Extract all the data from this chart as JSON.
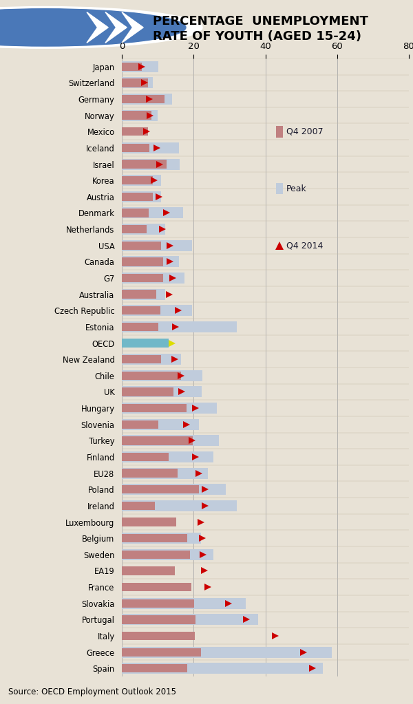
{
  "title_line1": "PERCENTAGE  UNEMPLOYMENT",
  "title_line2": "RATE OF YOUTH (AGED 15-24)",
  "source": "Source: OECD Employment Outlook 2015",
  "xlim_max": 80,
  "xticks": [
    0,
    20,
    40,
    60,
    80
  ],
  "bg_color": "#e8e2d6",
  "header_color": "#b8cce4",
  "footer_color": "#cddaec",
  "bar_color": "#c08080",
  "peak_color": "#c0ccdc",
  "oecd_bar_color": "#70b8c8",
  "tri_color": "#cc0000",
  "oecd_tri_color": "#dddd00",
  "text_color": "#1a1a2e",
  "countries": [
    "Japan",
    "Switzerland",
    "Germany",
    "Norway",
    "Mexico",
    "Iceland",
    "Israel",
    "Korea",
    "Austria",
    "Denmark",
    "Netherlands",
    "USA",
    "Canada",
    "G7",
    "Australia",
    "Czech Republic",
    "Estonia",
    "OECD",
    "New Zealand",
    "Chile",
    "UK",
    "Hungary",
    "Slovenia",
    "Turkey",
    "Finland",
    "EU28",
    "Poland",
    "Ireland",
    "Luxembourg",
    "Belgium",
    "Sweden",
    "EA19",
    "France",
    "Slovakia",
    "Portugal",
    "Italy",
    "Greece",
    "Spain"
  ],
  "q4_2007": [
    5.5,
    7.2,
    11.8,
    8.3,
    7.2,
    7.6,
    12.5,
    8.7,
    8.7,
    7.5,
    7.0,
    11.0,
    11.5,
    11.5,
    9.5,
    10.7,
    10.2,
    13.0,
    11.0,
    16.5,
    14.4,
    18.0,
    10.2,
    19.8,
    13.0,
    15.5,
    21.5,
    9.2,
    15.2,
    18.2,
    19.0,
    14.8,
    19.3,
    20.2,
    20.5,
    20.4,
    22.0,
    18.3
  ],
  "peak": [
    10.1,
    8.6,
    14.0,
    10.0,
    null,
    16.0,
    16.2,
    11.0,
    11.0,
    17.1,
    12.0,
    19.5,
    16.0,
    17.5,
    12.0,
    19.5,
    32.0,
    null,
    16.5,
    22.5,
    22.2,
    26.5,
    21.5,
    27.0,
    25.5,
    24.0,
    29.0,
    32.0,
    null,
    22.0,
    25.5,
    null,
    null,
    34.5,
    38.0,
    null,
    58.5,
    56.0
  ],
  "q4_2014": [
    5.5,
    6.4,
    7.7,
    7.9,
    7.0,
    9.8,
    10.6,
    9.0,
    10.3,
    12.5,
    11.4,
    13.4,
    13.4,
    14.2,
    13.3,
    15.8,
    15.0,
    14.0,
    14.8,
    16.5,
    16.6,
    20.6,
    18.0,
    19.5,
    20.6,
    21.4,
    23.2,
    23.3,
    22.0,
    22.4,
    22.7,
    23.0,
    23.9,
    29.7,
    34.7,
    42.7,
    50.6,
    53.2
  ],
  "oecd_idx": 17,
  "legend_entries": [
    {
      "label": "Q4 2007",
      "color": "#c08080",
      "type": "square"
    },
    {
      "label": "Peak",
      "color": "#c0ccdc",
      "type": "square"
    },
    {
      "label": "Q4 2014",
      "color": "#cc0000",
      "type": "triangle"
    }
  ]
}
